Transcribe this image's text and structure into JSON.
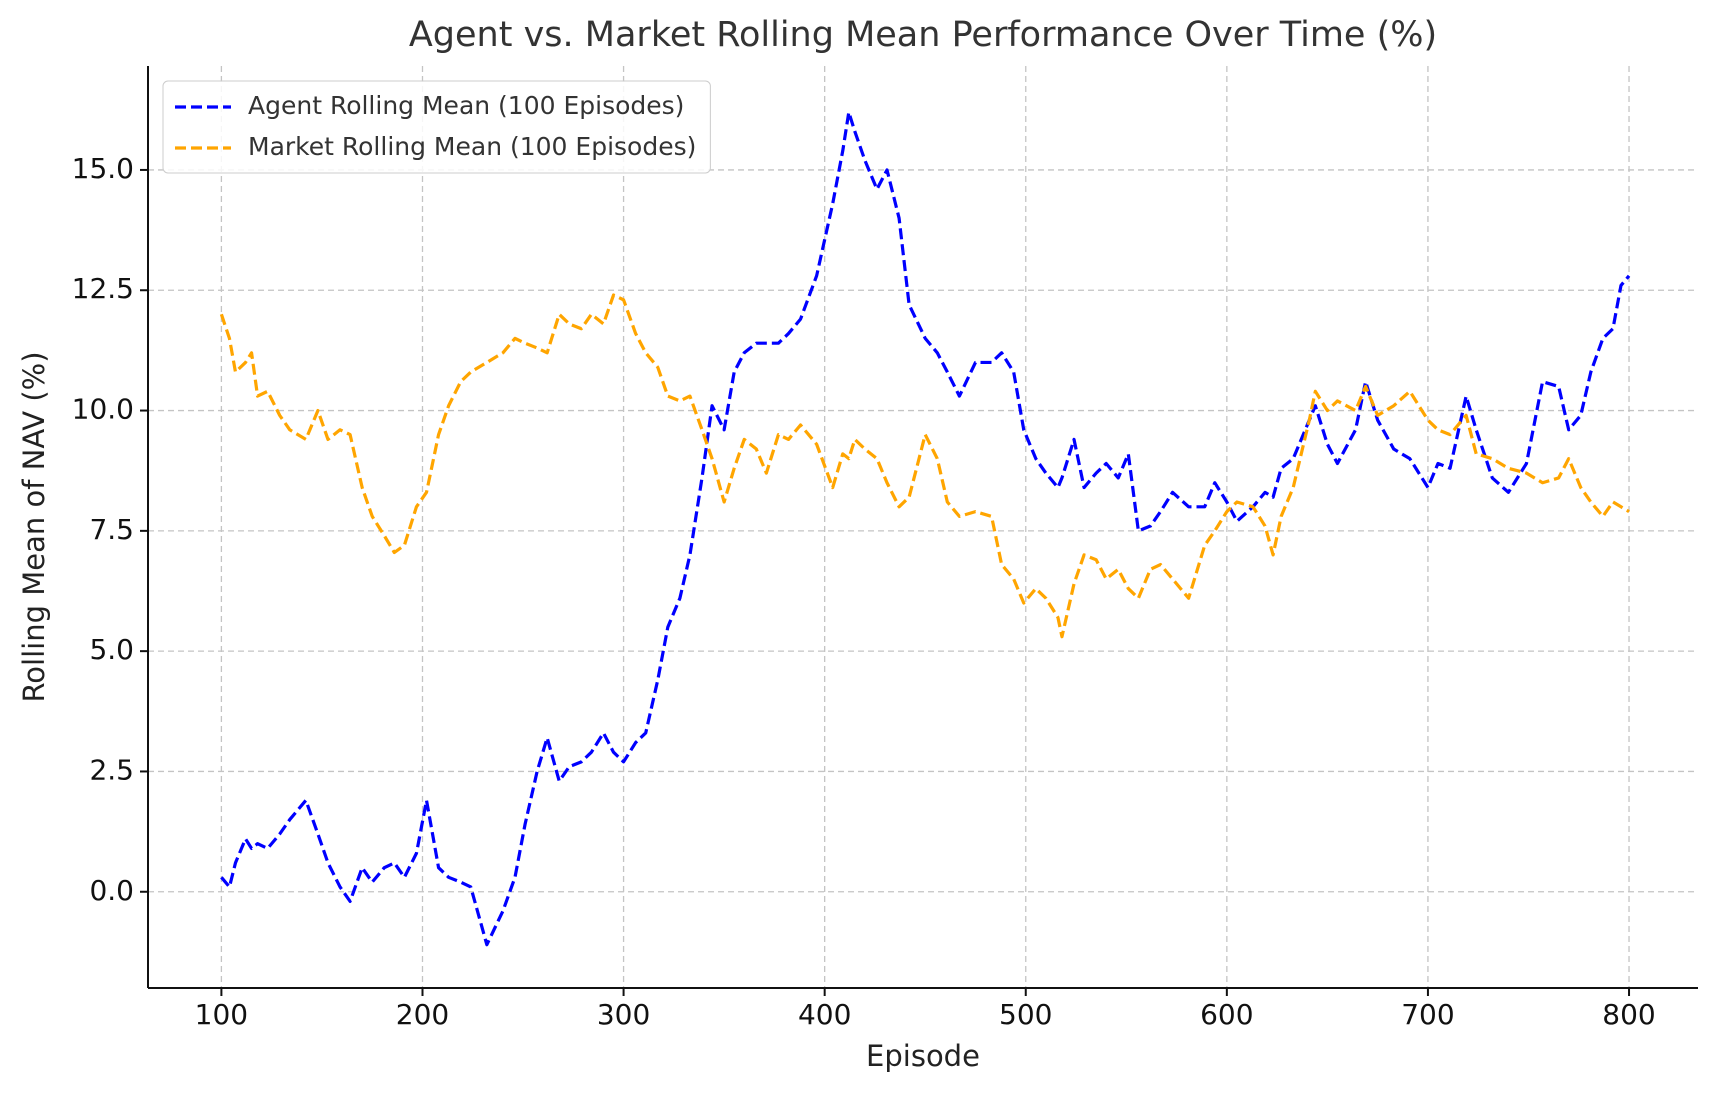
{
  "chart_data": {
    "type": "line",
    "title": "Agent vs. Market Rolling Mean Performance Over Time (%)",
    "x_label": "Episode",
    "y_label": "Rolling Mean of NAV (%)",
    "x": [
      100,
      104,
      107,
      112,
      115,
      118,
      123,
      129,
      134,
      142,
      148,
      153,
      159,
      164,
      170,
      175,
      181,
      186,
      191,
      197,
      202,
      208,
      213,
      219,
      224,
      232,
      240,
      246,
      251,
      257,
      262,
      268,
      273,
      279,
      284,
      290,
      295,
      300,
      306,
      311,
      317,
      322,
      328,
      333,
      339,
      344,
      350,
      355,
      360,
      366,
      371,
      377,
      382,
      388,
      396,
      404,
      409,
      412,
      415,
      420,
      426,
      431,
      437,
      442,
      450,
      456,
      461,
      467,
      475,
      483,
      488,
      494,
      499,
      505,
      510,
      516,
      518,
      524,
      529,
      535,
      540,
      546,
      551,
      556,
      562,
      567,
      573,
      581,
      589,
      594,
      600,
      605,
      613,
      619,
      623,
      627,
      633,
      641,
      644,
      650,
      655,
      664,
      669,
      675,
      683,
      691,
      700,
      705,
      711,
      719,
      724,
      732,
      740,
      749,
      757,
      765,
      770,
      776,
      781,
      787,
      792,
      796,
      800
    ],
    "series": [
      {
        "name": "Agent Rolling Mean (100 Episodes)",
        "color": "#0000ff",
        "values": [
          0.3,
          0.1,
          0.6,
          1.1,
          0.9,
          1.0,
          0.9,
          1.2,
          1.5,
          1.9,
          1.2,
          0.6,
          0.1,
          -0.2,
          0.5,
          0.2,
          0.5,
          0.6,
          0.3,
          0.8,
          1.9,
          0.5,
          0.3,
          0.2,
          0.1,
          -1.1,
          -0.4,
          0.3,
          1.4,
          2.5,
          3.2,
          2.3,
          2.6,
          2.7,
          2.9,
          3.3,
          2.9,
          2.7,
          3.1,
          3.3,
          4.4,
          5.5,
          6.1,
          7.0,
          8.6,
          10.1,
          9.6,
          10.8,
          11.2,
          11.4,
          11.4,
          11.4,
          11.6,
          11.9,
          12.8,
          14.3,
          15.4,
          16.2,
          15.8,
          15.2,
          14.6,
          15.0,
          14.0,
          12.2,
          11.5,
          11.2,
          10.8,
          10.3,
          11.0,
          11.0,
          11.2,
          10.8,
          9.6,
          9.0,
          8.7,
          8.4,
          8.6,
          9.4,
          8.4,
          8.7,
          8.9,
          8.6,
          9.1,
          7.5,
          7.6,
          7.9,
          8.3,
          8.0,
          8.0,
          8.5,
          8.1,
          7.7,
          8.0,
          8.3,
          8.2,
          8.8,
          9.0,
          9.8,
          10.1,
          9.3,
          8.9,
          9.6,
          10.6,
          9.8,
          9.2,
          9.0,
          8.4,
          8.9,
          8.8,
          10.3,
          9.6,
          8.6,
          8.3,
          8.9,
          10.6,
          10.5,
          9.6,
          9.9,
          10.8,
          11.5,
          11.7,
          12.6,
          12.8
        ]
      },
      {
        "name": "Market Rolling Mean (100 Episodes)",
        "color": "#ffa500",
        "values": [
          12.0,
          11.5,
          10.8,
          11.0,
          11.2,
          10.3,
          10.4,
          9.9,
          9.6,
          9.4,
          10.0,
          9.4,
          9.6,
          9.5,
          8.4,
          7.8,
          7.4,
          7.05,
          7.2,
          8.0,
          8.3,
          9.5,
          10.1,
          10.6,
          10.8,
          11.0,
          11.2,
          11.5,
          11.4,
          11.3,
          11.2,
          12.0,
          11.8,
          11.7,
          12.0,
          11.8,
          12.4,
          12.3,
          11.6,
          11.2,
          10.9,
          10.3,
          10.2,
          10.3,
          9.6,
          9.0,
          8.1,
          8.8,
          9.4,
          9.2,
          8.7,
          9.5,
          9.4,
          9.7,
          9.3,
          8.4,
          9.1,
          9.0,
          9.4,
          9.2,
          9.0,
          8.5,
          8.0,
          8.2,
          9.5,
          9.0,
          8.1,
          7.8,
          7.9,
          7.8,
          6.8,
          6.5,
          6.0,
          6.3,
          6.1,
          5.7,
          5.3,
          6.4,
          7.0,
          6.9,
          6.5,
          6.7,
          6.3,
          6.1,
          6.7,
          6.8,
          6.5,
          6.1,
          7.2,
          7.5,
          7.9,
          8.1,
          8.0,
          7.6,
          7.0,
          7.8,
          8.4,
          9.8,
          10.4,
          10.0,
          10.2,
          10.0,
          10.5,
          9.9,
          10.1,
          10.4,
          9.8,
          9.6,
          9.5,
          9.9,
          9.1,
          9.0,
          8.8,
          8.7,
          8.5,
          8.6,
          9.0,
          8.4,
          8.1,
          7.8,
          8.1,
          8.0,
          7.9
        ]
      }
    ],
    "xlim": [
      63.5,
      834.3
    ],
    "ylim": [
      -2.0,
      17.16
    ],
    "xticks": [
      100,
      200,
      300,
      400,
      500,
      600,
      700,
      800
    ],
    "yticks": [
      {
        "value": 0,
        "label": "0.0"
      },
      {
        "value": 2.5,
        "label": "2.5"
      },
      {
        "value": 5,
        "label": "5.0"
      },
      {
        "value": 7.5,
        "label": "7.5"
      },
      {
        "value": 10,
        "label": "10.0"
      },
      {
        "value": 12.5,
        "label": "12.5"
      },
      {
        "value": 15,
        "label": "15.0"
      }
    ],
    "grid": true,
    "line_style": "dashed",
    "legend": "upper left"
  }
}
